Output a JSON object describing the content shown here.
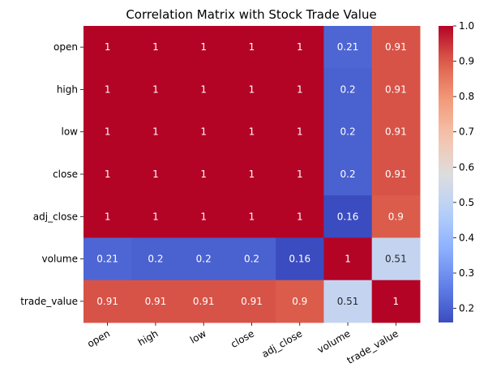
{
  "chart_data": {
    "type": "heatmap",
    "title": "Correlation Matrix with Stock Trade Value",
    "rows": [
      "open",
      "high",
      "low",
      "close",
      "adj_close",
      "volume",
      "trade_value"
    ],
    "columns": [
      "open",
      "high",
      "low",
      "close",
      "adj_close",
      "volume",
      "trade_value"
    ],
    "values": [
      [
        1,
        1,
        1,
        1,
        1,
        0.21,
        0.91
      ],
      [
        1,
        1,
        1,
        1,
        1,
        0.2,
        0.91
      ],
      [
        1,
        1,
        1,
        1,
        1,
        0.2,
        0.91
      ],
      [
        1,
        1,
        1,
        1,
        1,
        0.2,
        0.91
      ],
      [
        1,
        1,
        1,
        1,
        1,
        0.16,
        0.9
      ],
      [
        0.21,
        0.2,
        0.2,
        0.2,
        0.16,
        1,
        0.51
      ],
      [
        0.91,
        0.91,
        0.91,
        0.91,
        0.9,
        0.51,
        1
      ]
    ],
    "value_labels": [
      [
        "1",
        "1",
        "1",
        "1",
        "1",
        "0.21",
        "0.91"
      ],
      [
        "1",
        "1",
        "1",
        "1",
        "1",
        "0.2",
        "0.91"
      ],
      [
        "1",
        "1",
        "1",
        "1",
        "1",
        "0.2",
        "0.91"
      ],
      [
        "1",
        "1",
        "1",
        "1",
        "1",
        "0.2",
        "0.91"
      ],
      [
        "1",
        "1",
        "1",
        "1",
        "1",
        "0.16",
        "0.9"
      ],
      [
        "0.21",
        "0.2",
        "0.2",
        "0.2",
        "0.16",
        "1",
        "0.51"
      ],
      [
        "0.91",
        "0.91",
        "0.91",
        "0.91",
        "0.9",
        "0.51",
        "1"
      ]
    ],
    "colormap": "coolwarm",
    "colorbar": {
      "range": [
        0.16,
        1.0
      ],
      "ticks": [
        0.2,
        0.3,
        0.4,
        0.5,
        0.6,
        0.7,
        0.8,
        0.9,
        1.0
      ],
      "tick_labels": [
        "0.2",
        "0.3",
        "0.4",
        "0.5",
        "0.6",
        "0.7",
        "0.8",
        "0.9",
        "1.0"
      ]
    },
    "xtick_rotation": "30deg"
  }
}
